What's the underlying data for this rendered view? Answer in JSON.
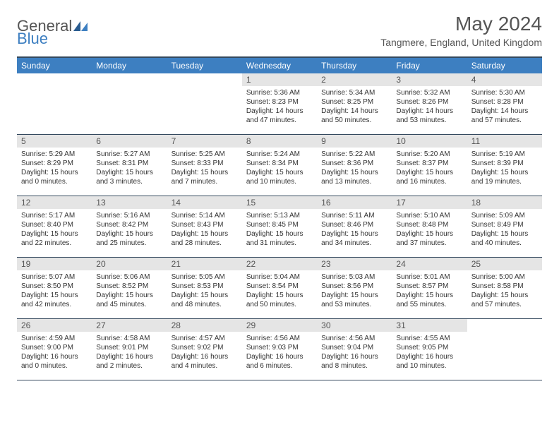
{
  "brand": {
    "part1": "General",
    "part2": "Blue"
  },
  "title": "May 2024",
  "location": "Tangmere, England, United Kingdom",
  "colors": {
    "header_bg": "#3d7fc1",
    "border": "#34495e",
    "daynum_bg": "#e5e5e5",
    "text": "#333333",
    "muted": "#555555"
  },
  "days_of_week": [
    "Sunday",
    "Monday",
    "Tuesday",
    "Wednesday",
    "Thursday",
    "Friday",
    "Saturday"
  ],
  "weeks": [
    [
      null,
      null,
      null,
      {
        "d": "1",
        "sr": "5:36 AM",
        "ss": "8:23 PM",
        "dl": "14 hours and 47 minutes."
      },
      {
        "d": "2",
        "sr": "5:34 AM",
        "ss": "8:25 PM",
        "dl": "14 hours and 50 minutes."
      },
      {
        "d": "3",
        "sr": "5:32 AM",
        "ss": "8:26 PM",
        "dl": "14 hours and 53 minutes."
      },
      {
        "d": "4",
        "sr": "5:30 AM",
        "ss": "8:28 PM",
        "dl": "14 hours and 57 minutes."
      }
    ],
    [
      {
        "d": "5",
        "sr": "5:29 AM",
        "ss": "8:29 PM",
        "dl": "15 hours and 0 minutes."
      },
      {
        "d": "6",
        "sr": "5:27 AM",
        "ss": "8:31 PM",
        "dl": "15 hours and 3 minutes."
      },
      {
        "d": "7",
        "sr": "5:25 AM",
        "ss": "8:33 PM",
        "dl": "15 hours and 7 minutes."
      },
      {
        "d": "8",
        "sr": "5:24 AM",
        "ss": "8:34 PM",
        "dl": "15 hours and 10 minutes."
      },
      {
        "d": "9",
        "sr": "5:22 AM",
        "ss": "8:36 PM",
        "dl": "15 hours and 13 minutes."
      },
      {
        "d": "10",
        "sr": "5:20 AM",
        "ss": "8:37 PM",
        "dl": "15 hours and 16 minutes."
      },
      {
        "d": "11",
        "sr": "5:19 AM",
        "ss": "8:39 PM",
        "dl": "15 hours and 19 minutes."
      }
    ],
    [
      {
        "d": "12",
        "sr": "5:17 AM",
        "ss": "8:40 PM",
        "dl": "15 hours and 22 minutes."
      },
      {
        "d": "13",
        "sr": "5:16 AM",
        "ss": "8:42 PM",
        "dl": "15 hours and 25 minutes."
      },
      {
        "d": "14",
        "sr": "5:14 AM",
        "ss": "8:43 PM",
        "dl": "15 hours and 28 minutes."
      },
      {
        "d": "15",
        "sr": "5:13 AM",
        "ss": "8:45 PM",
        "dl": "15 hours and 31 minutes."
      },
      {
        "d": "16",
        "sr": "5:11 AM",
        "ss": "8:46 PM",
        "dl": "15 hours and 34 minutes."
      },
      {
        "d": "17",
        "sr": "5:10 AM",
        "ss": "8:48 PM",
        "dl": "15 hours and 37 minutes."
      },
      {
        "d": "18",
        "sr": "5:09 AM",
        "ss": "8:49 PM",
        "dl": "15 hours and 40 minutes."
      }
    ],
    [
      {
        "d": "19",
        "sr": "5:07 AM",
        "ss": "8:50 PM",
        "dl": "15 hours and 42 minutes."
      },
      {
        "d": "20",
        "sr": "5:06 AM",
        "ss": "8:52 PM",
        "dl": "15 hours and 45 minutes."
      },
      {
        "d": "21",
        "sr": "5:05 AM",
        "ss": "8:53 PM",
        "dl": "15 hours and 48 minutes."
      },
      {
        "d": "22",
        "sr": "5:04 AM",
        "ss": "8:54 PM",
        "dl": "15 hours and 50 minutes."
      },
      {
        "d": "23",
        "sr": "5:03 AM",
        "ss": "8:56 PM",
        "dl": "15 hours and 53 minutes."
      },
      {
        "d": "24",
        "sr": "5:01 AM",
        "ss": "8:57 PM",
        "dl": "15 hours and 55 minutes."
      },
      {
        "d": "25",
        "sr": "5:00 AM",
        "ss": "8:58 PM",
        "dl": "15 hours and 57 minutes."
      }
    ],
    [
      {
        "d": "26",
        "sr": "4:59 AM",
        "ss": "9:00 PM",
        "dl": "16 hours and 0 minutes."
      },
      {
        "d": "27",
        "sr": "4:58 AM",
        "ss": "9:01 PM",
        "dl": "16 hours and 2 minutes."
      },
      {
        "d": "28",
        "sr": "4:57 AM",
        "ss": "9:02 PM",
        "dl": "16 hours and 4 minutes."
      },
      {
        "d": "29",
        "sr": "4:56 AM",
        "ss": "9:03 PM",
        "dl": "16 hours and 6 minutes."
      },
      {
        "d": "30",
        "sr": "4:56 AM",
        "ss": "9:04 PM",
        "dl": "16 hours and 8 minutes."
      },
      {
        "d": "31",
        "sr": "4:55 AM",
        "ss": "9:05 PM",
        "dl": "16 hours and 10 minutes."
      },
      null
    ]
  ],
  "labels": {
    "sunrise": "Sunrise:",
    "sunset": "Sunset:",
    "daylight": "Daylight:"
  }
}
